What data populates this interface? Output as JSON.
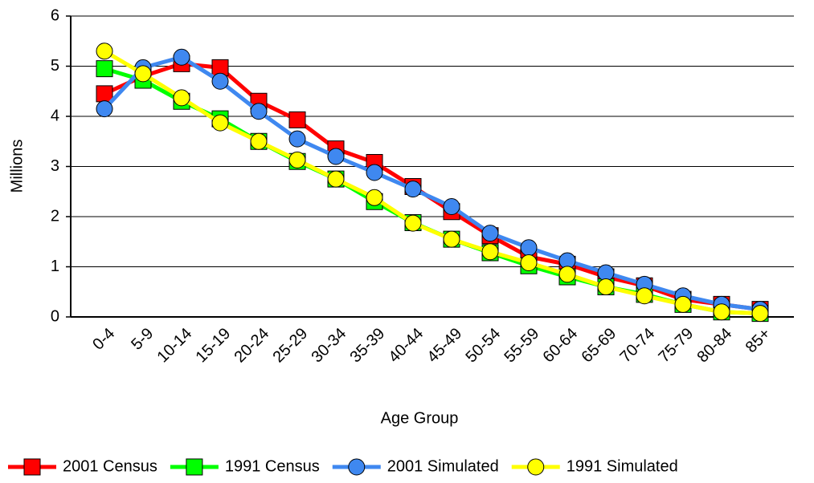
{
  "chart_data": {
    "type": "line",
    "x_label": "Age Group",
    "y_label": "Millions",
    "categories": [
      "0-4",
      "5-9",
      "10-14",
      "15-19",
      "20-24",
      "25-29",
      "30-34",
      "35-39",
      "40-44",
      "45-49",
      "50-54",
      "55-59",
      "60-64",
      "65-69",
      "70-74",
      "75-79",
      "80-84",
      "85+"
    ],
    "ylim": [
      0,
      6
    ],
    "yticks": [
      0,
      1,
      2,
      3,
      4,
      5,
      6
    ],
    "grid": true,
    "legend": "bottom",
    "series": [
      {
        "name": "2001 Census",
        "color": "#ff0000",
        "marker": "square",
        "values": [
          4.45,
          4.8,
          5.05,
          4.97,
          4.3,
          3.93,
          3.35,
          3.08,
          2.6,
          2.1,
          1.62,
          1.2,
          1.05,
          0.8,
          0.62,
          0.35,
          0.25,
          0.15
        ]
      },
      {
        "name": "1991 Census",
        "color": "#00ff00",
        "marker": "square",
        "values": [
          4.95,
          4.72,
          4.3,
          3.95,
          3.5,
          3.1,
          2.75,
          2.3,
          1.88,
          1.55,
          1.28,
          1.02,
          0.8,
          0.6,
          0.45,
          0.25,
          0.1,
          0.07
        ]
      },
      {
        "name": "2001 Simulated",
        "color": "#3f88f0",
        "marker": "circle",
        "values": [
          4.15,
          4.97,
          5.18,
          4.7,
          4.1,
          3.55,
          3.2,
          2.88,
          2.55,
          2.2,
          1.67,
          1.38,
          1.12,
          0.88,
          0.65,
          0.42,
          0.25,
          0.15
        ]
      },
      {
        "name": "1991 Simulated",
        "color": "#ffff00",
        "marker": "circle",
        "values": [
          5.3,
          4.85,
          4.37,
          3.87,
          3.5,
          3.13,
          2.75,
          2.38,
          1.87,
          1.55,
          1.3,
          1.08,
          0.85,
          0.6,
          0.42,
          0.25,
          0.1,
          0.07
        ]
      }
    ]
  }
}
